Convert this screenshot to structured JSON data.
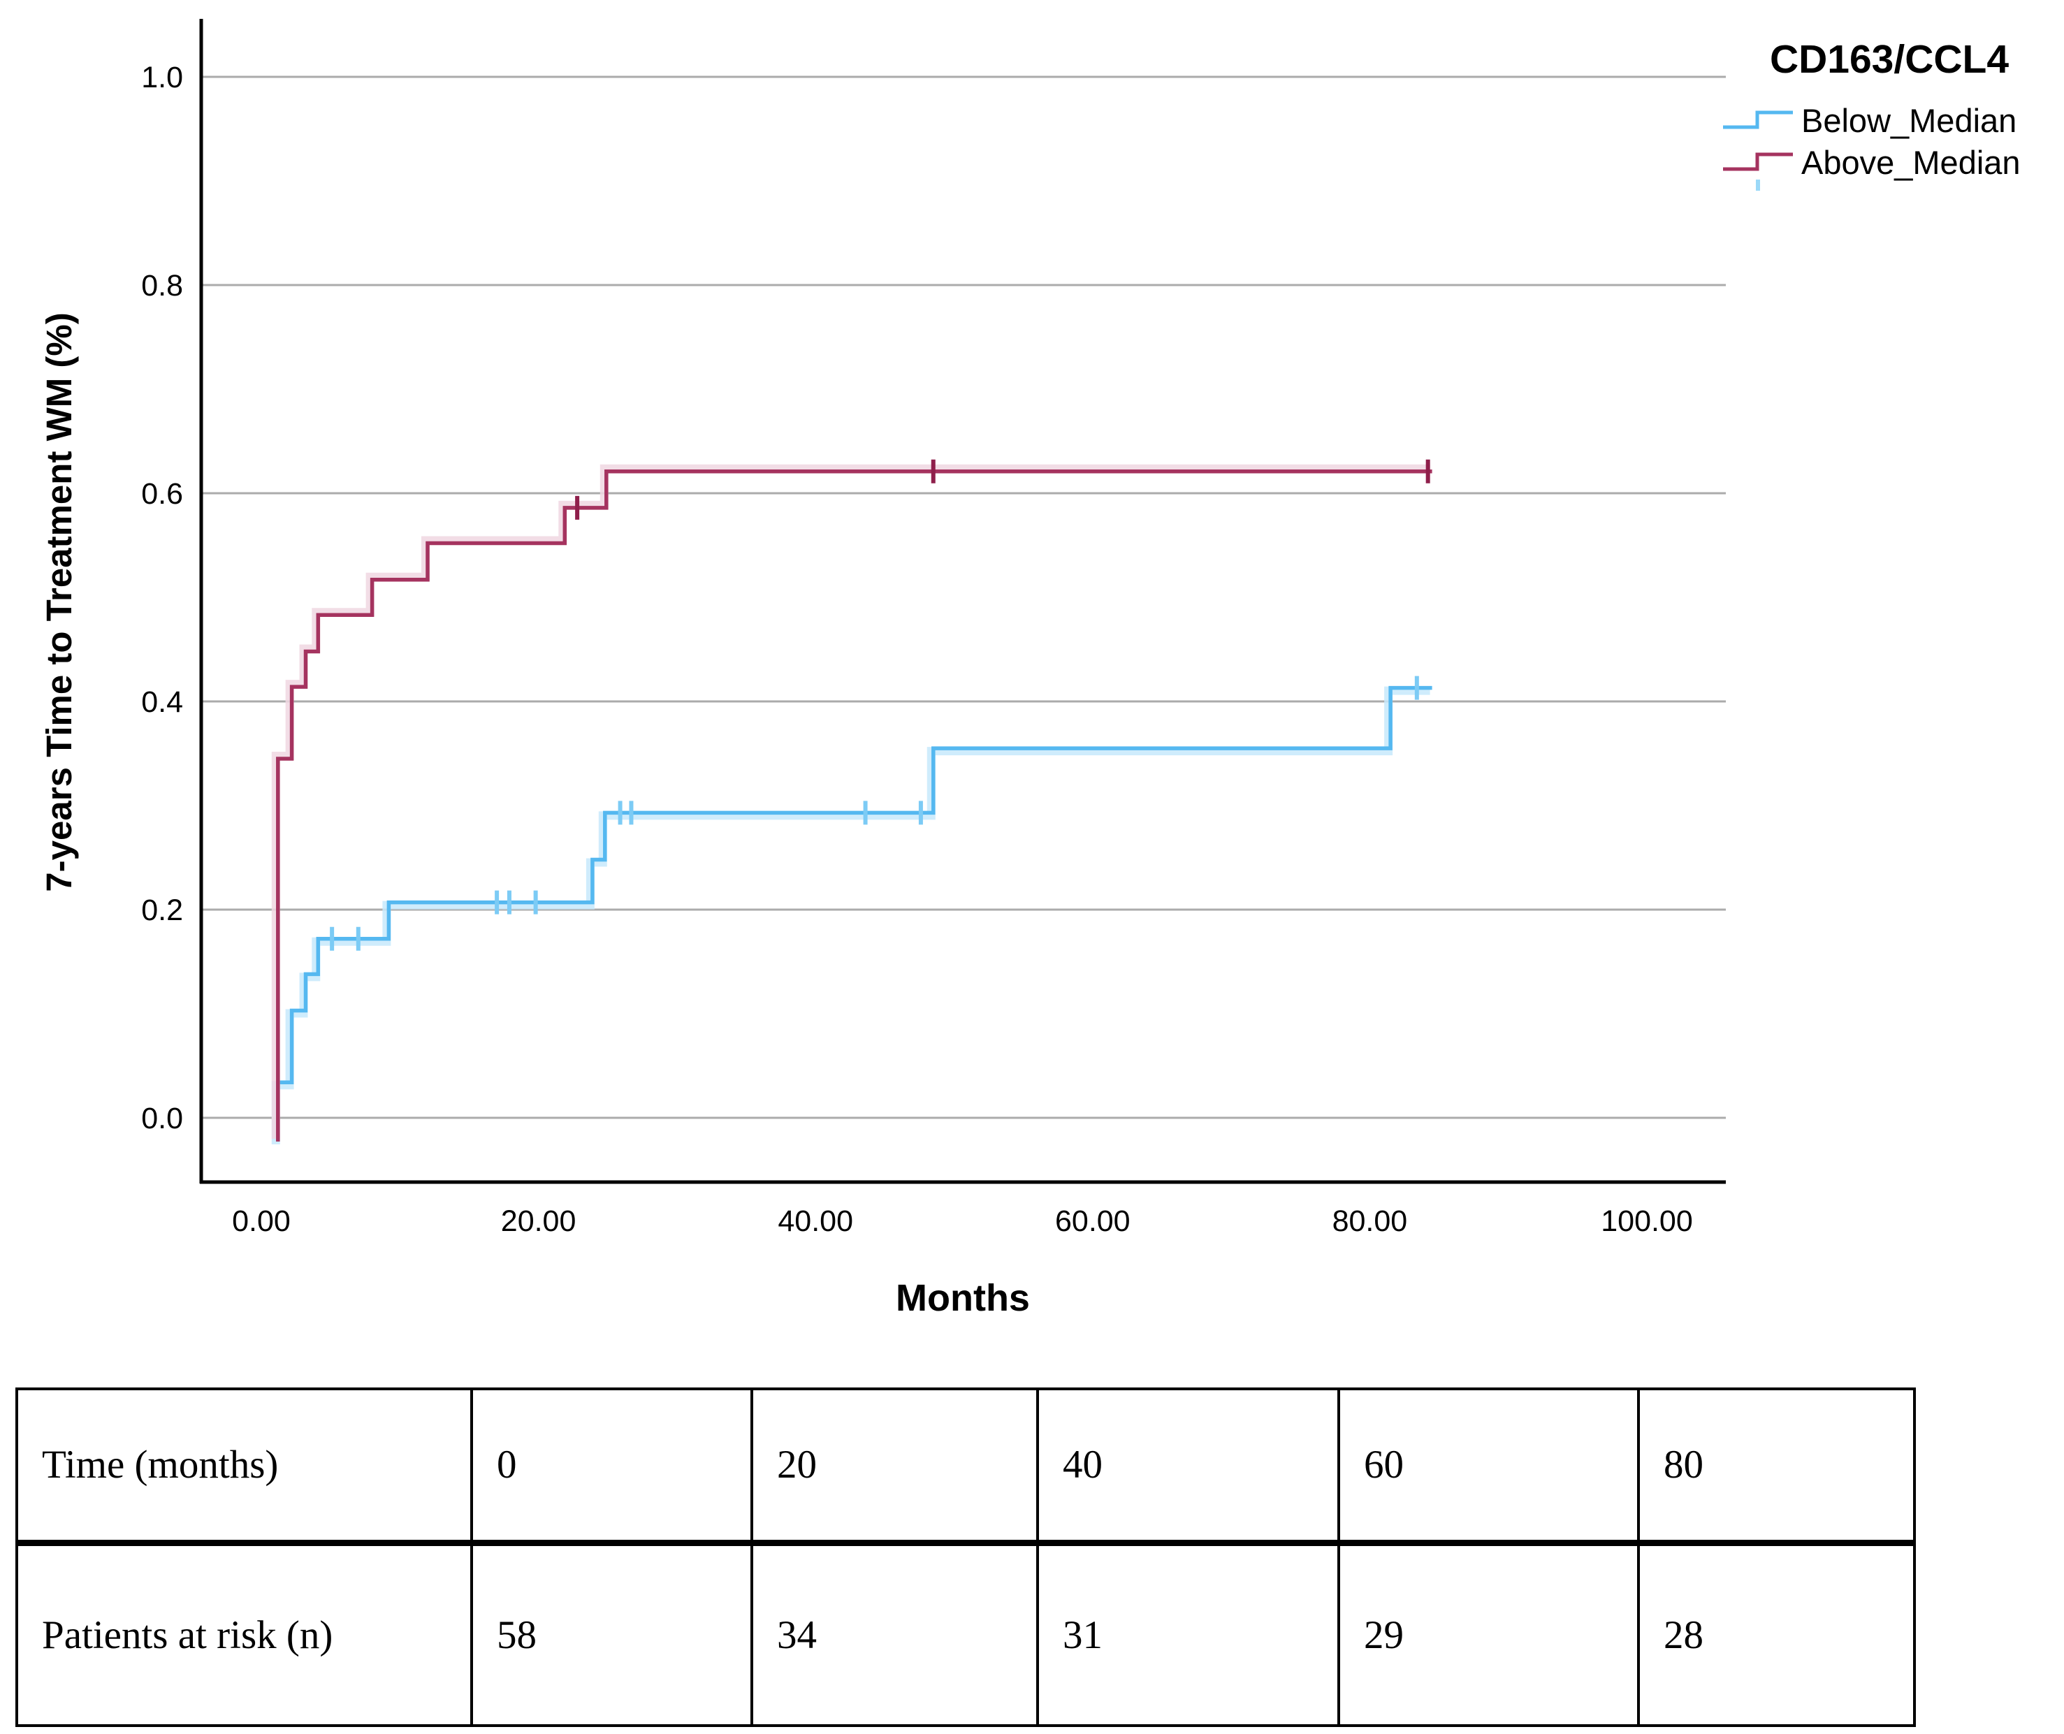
{
  "chart_data": {
    "type": "line",
    "subtype": "kaplan-meier-step",
    "title": "CD163/CCL4",
    "xlabel": "Months",
    "ylabel": "7-years Time to Treatment WM (%)",
    "xlim": [
      0,
      105.7
    ],
    "ylim": [
      0,
      1.0
    ],
    "grid": "horizontal-only",
    "legend_position": "top-right",
    "legend_title": "CD163/CCL4",
    "legend_partial_censor_mark_color": "#9BD9F8",
    "x_ticks": {
      "values": [
        0,
        20,
        40,
        60,
        80,
        100
      ],
      "labels": [
        "0.00",
        "20.00",
        "40.00",
        "60.00",
        "80.00",
        "100.00"
      ]
    },
    "y_ticks": {
      "values": [
        0,
        0.2,
        0.4,
        0.6,
        0.8,
        1.0
      ],
      "labels": [
        "0.0",
        "0.2",
        "0.4",
        "0.6",
        "0.8",
        "1.0"
      ]
    },
    "colors": {
      "gridline": "#ABABAB",
      "axis": "#000000"
    },
    "series": [
      {
        "name": "Below_Median",
        "color": "#55B8F0",
        "halo_color": "#C7E9FC",
        "censor_color": "#7CCBF5",
        "steps": [
          [
            1.2,
            0
          ],
          [
            1.2,
            0.034
          ],
          [
            2.2,
            0.034
          ],
          [
            2.2,
            0.103
          ],
          [
            3.2,
            0.103
          ],
          [
            3.2,
            0.138
          ],
          [
            4.1,
            0.138
          ],
          [
            4.1,
            0.172
          ],
          [
            9.2,
            0.172
          ],
          [
            9.2,
            0.207
          ],
          [
            23.9,
            0.207
          ],
          [
            23.9,
            0.248
          ],
          [
            24.8,
            0.248
          ],
          [
            24.8,
            0.293
          ],
          [
            48.5,
            0.293
          ],
          [
            48.5,
            0.355
          ],
          [
            81.5,
            0.355
          ],
          [
            81.5,
            0.413
          ],
          [
            84.5,
            0.413
          ]
        ],
        "censors": [
          [
            5.1,
            0.172
          ],
          [
            7.0,
            0.172
          ],
          [
            17.0,
            0.207
          ],
          [
            17.9,
            0.207
          ],
          [
            19.8,
            0.207
          ],
          [
            25.9,
            0.293
          ],
          [
            26.7,
            0.293
          ],
          [
            43.6,
            0.293
          ],
          [
            47.6,
            0.293
          ],
          [
            83.4,
            0.413
          ]
        ]
      },
      {
        "name": "Above_Median",
        "color": "#A5335F",
        "halo_color": "#F0D7E2",
        "censor_color": "#8F1F4B",
        "steps": [
          [
            1.2,
            0
          ],
          [
            1.2,
            0.345
          ],
          [
            2.2,
            0.345
          ],
          [
            2.2,
            0.414
          ],
          [
            3.2,
            0.414
          ],
          [
            3.2,
            0.448
          ],
          [
            4.1,
            0.448
          ],
          [
            4.1,
            0.483
          ],
          [
            8.0,
            0.483
          ],
          [
            8.0,
            0.517
          ],
          [
            12.0,
            0.517
          ],
          [
            12.0,
            0.552
          ],
          [
            21.9,
            0.552
          ],
          [
            21.9,
            0.586
          ],
          [
            24.9,
            0.586
          ],
          [
            24.9,
            0.621
          ],
          [
            84.5,
            0.621
          ]
        ],
        "censors": [
          [
            22.8,
            0.586
          ],
          [
            48.5,
            0.621
          ],
          [
            84.2,
            0.621
          ]
        ]
      }
    ]
  },
  "risk_table": {
    "rows": [
      {
        "label": "Time (months)",
        "values": [
          "0",
          "20",
          "40",
          "60",
          "80"
        ]
      },
      {
        "label": "Patients at risk (n)",
        "values": [
          "58",
          "34",
          "31",
          "29",
          "28"
        ]
      }
    ]
  }
}
